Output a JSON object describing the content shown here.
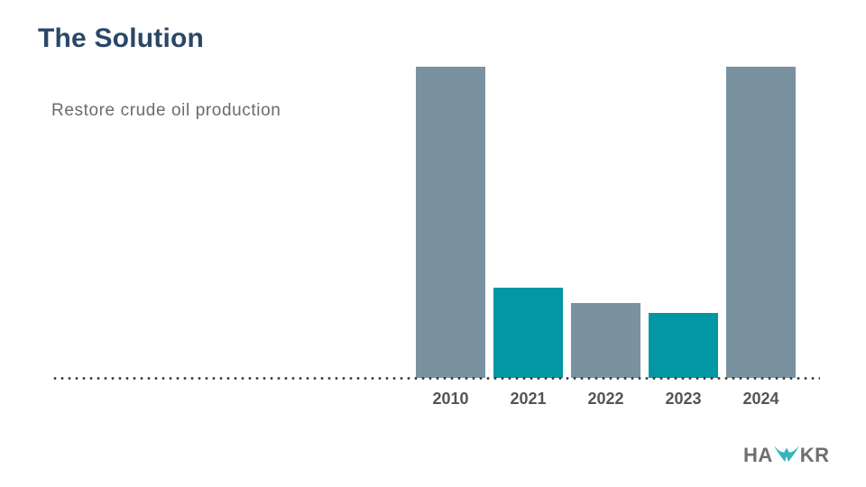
{
  "page": {
    "title": "The Solution",
    "subtitle": "Restore crude oil production"
  },
  "chart_data": {
    "type": "bar",
    "categories": [
      "2010",
      "2021",
      "2022",
      "2023",
      "2024"
    ],
    "values": [
      100,
      29,
      24,
      21,
      100
    ],
    "bar_colors": [
      "#7A92A0",
      "#0397A6",
      "#7A92A0",
      "#0397A6",
      "#7A92A0"
    ],
    "title": "",
    "xlabel": "",
    "ylabel": "",
    "ylim": [
      0,
      100
    ],
    "grid": false,
    "legend": false,
    "y_axis_visible": false,
    "baseline_style": "dotted"
  },
  "colors": {
    "title_navy": "#2B4766",
    "subtitle_gray": "#6B6B6B",
    "bar_gray_blue": "#7A92A0",
    "bar_teal": "#0397A6",
    "tick_label_gray": "#525456",
    "dotted_baseline": "#3B3B3B",
    "logo_gray": "#6D6E70",
    "logo_teal": "#35B6BA"
  },
  "logo": {
    "full": "HAWKR",
    "part1": "HA",
    "part2": "KR"
  }
}
